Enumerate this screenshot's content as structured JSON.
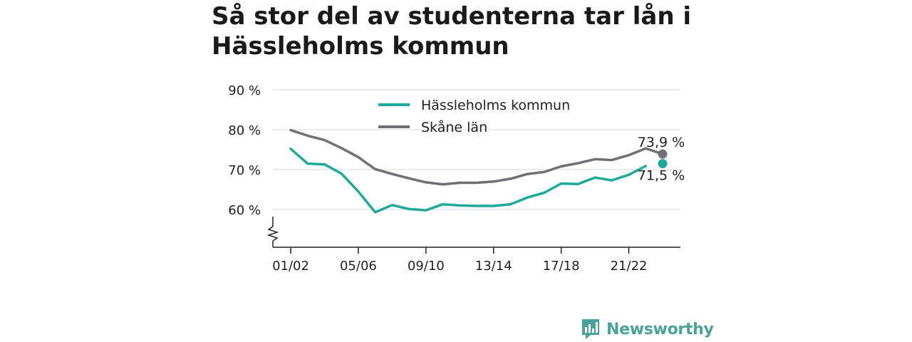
{
  "title": "Så stor del av studenterna tar lån i Hässleholms kommun",
  "chart_data": {
    "type": "line",
    "categories": [
      "01/02",
      "02/03",
      "03/04",
      "04/05",
      "05/06",
      "06/07",
      "07/08",
      "08/09",
      "09/10",
      "10/11",
      "11/12",
      "12/13",
      "13/14",
      "14/15",
      "15/16",
      "16/17",
      "17/18",
      "18/19",
      "19/20",
      "20/21",
      "21/22",
      "22/23",
      "23/24"
    ],
    "x_tick_labels": [
      "01/02",
      "05/06",
      "09/10",
      "13/14",
      "17/18",
      "21/22"
    ],
    "y_ticks": [
      60,
      70,
      80,
      90
    ],
    "y_tick_labels": [
      "60 %",
      "70 %",
      "80 %",
      "90 %"
    ],
    "ylim": [
      51,
      90
    ],
    "axis_break": true,
    "grid": true,
    "legend_position": "top-center",
    "series": [
      {
        "name": "Hässleholms kommun",
        "color": "#1fa99b",
        "values": [
          75.2,
          71.5,
          71.3,
          69.0,
          64.5,
          59.3,
          61.1,
          60.1,
          59.8,
          61.3,
          61.0,
          60.9,
          60.9,
          61.3,
          63.0,
          64.2,
          66.5,
          66.4,
          68.0,
          67.3,
          68.7,
          70.9,
          71.5
        ],
        "gap_before_index": 22,
        "end_label": "71,5 %"
      },
      {
        "name": "Skåne län",
        "color": "#707075",
        "values": [
          79.9,
          78.5,
          77.4,
          75.4,
          73.1,
          70.1,
          68.9,
          67.8,
          66.8,
          66.3,
          66.7,
          66.7,
          67.0,
          67.7,
          68.9,
          69.4,
          70.8,
          71.6,
          72.6,
          72.4,
          73.6,
          75.3,
          73.9
        ],
        "end_label": "73,9 %"
      }
    ]
  },
  "brand": {
    "name": "Newsworthy",
    "color": "#4aa397",
    "icon": "bar-chart-speech-bubble-icon"
  }
}
